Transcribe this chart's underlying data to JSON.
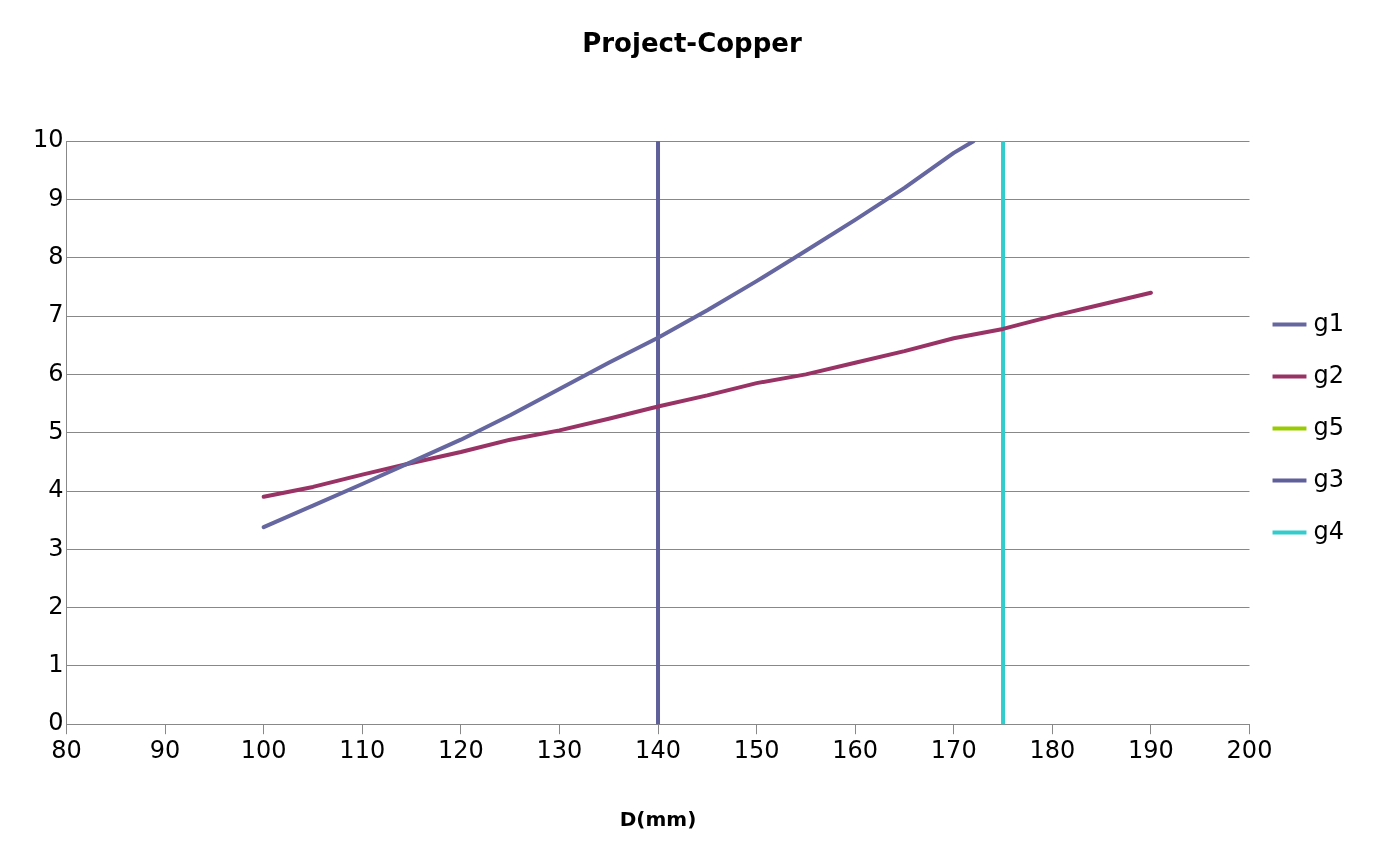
{
  "chart_data": {
    "type": "line",
    "title": "Project-Copper",
    "xlabel": "D(mm)",
    "xlim": [
      80,
      200
    ],
    "xticks": [
      80,
      90,
      100,
      110,
      120,
      130,
      140,
      150,
      160,
      170,
      180,
      190,
      200
    ],
    "ylim": [
      0,
      10
    ],
    "yticks": [
      0,
      1,
      2,
      3,
      4,
      5,
      6,
      7,
      8,
      9,
      10
    ],
    "grid": "y",
    "legend": "right",
    "marker": "none",
    "line_style": "solid",
    "series": [
      {
        "name": "g1",
        "color": "#6666a0",
        "x": [
          100,
          105,
          110,
          115,
          120,
          125,
          130,
          135,
          140,
          145,
          150,
          155,
          160,
          165,
          170,
          172
        ],
        "values": [
          3.38,
          3.75,
          4.12,
          4.5,
          4.88,
          5.3,
          5.75,
          6.2,
          6.63,
          7.1,
          7.6,
          8.12,
          8.65,
          9.2,
          9.8,
          10
        ]
      },
      {
        "name": "g2",
        "color": "#993366",
        "x": [
          100,
          105,
          110,
          115,
          120,
          125,
          130,
          135,
          140,
          145,
          150,
          155,
          160,
          165,
          170,
          175,
          180,
          185,
          190
        ],
        "values": [
          3.9,
          4.07,
          4.28,
          4.48,
          4.67,
          4.88,
          5.04,
          5.24,
          5.45,
          5.64,
          5.85,
          6.0,
          6.2,
          6.4,
          6.62,
          6.78,
          7.0,
          7.2,
          7.4
        ]
      },
      {
        "name": "g5",
        "color": "#99cc00"
      },
      {
        "name": "g3",
        "color": "#5f5f9a",
        "x": [
          140,
          140
        ],
        "values": [
          0,
          10
        ]
      },
      {
        "name": "g4",
        "color": "#33cccc",
        "x": [
          175,
          175
        ],
        "values": [
          0,
          10
        ]
      }
    ]
  }
}
